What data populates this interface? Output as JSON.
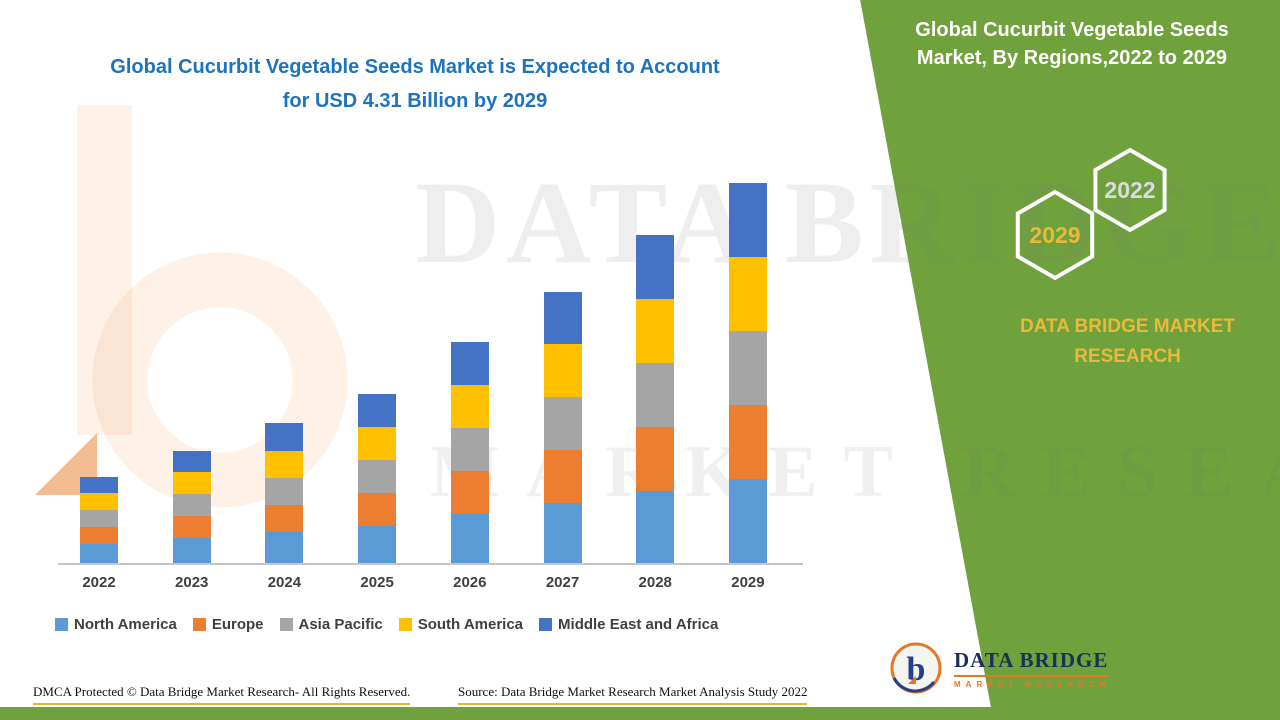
{
  "header": {
    "title_line1": "Global Cucurbit Vegetable Seeds Market is Expected to Account",
    "title_line2": "for USD 4.31 Billion by 2029"
  },
  "panel": {
    "title_line1": "Global Cucurbit Vegetable Seeds",
    "title_line2": "Market, By Regions,2022 to 2029",
    "hexagon_front": "2029",
    "hexagon_back": "2022",
    "brand": "DATA BRIDGE MARKET RESEARCH",
    "green": "#6FA13C",
    "accent_yellow": "#E9B93B"
  },
  "watermark": {
    "line1": "DATA BRIDGE",
    "line2": "MARKET RESEARCH"
  },
  "chart_data": {
    "type": "bar",
    "stacked": true,
    "title": "Global Cucurbit Vegetable Seeds Market, By Regions, 2022 to 2029",
    "unit": "USD Billion",
    "categories": [
      "2022",
      "2023",
      "2024",
      "2025",
      "2026",
      "2027",
      "2028",
      "2029"
    ],
    "series": [
      {
        "name": "North America",
        "color": "#5B9BD5",
        "values": [
          0.21,
          0.28,
          0.35,
          0.42,
          0.55,
          0.68,
          0.81,
          0.95
        ]
      },
      {
        "name": "Europe",
        "color": "#ED7D31",
        "values": [
          0.19,
          0.25,
          0.31,
          0.37,
          0.48,
          0.6,
          0.72,
          0.84
        ]
      },
      {
        "name": "Asia Pacific",
        "color": "#A5A5A5",
        "values": [
          0.19,
          0.25,
          0.31,
          0.37,
          0.48,
          0.6,
          0.72,
          0.84
        ]
      },
      {
        "name": "South America",
        "color": "#FFC000",
        "values": [
          0.19,
          0.25,
          0.31,
          0.37,
          0.48,
          0.6,
          0.72,
          0.84
        ]
      },
      {
        "name": "Middle East and Africa",
        "color": "#4472C4",
        "values": [
          0.18,
          0.24,
          0.32,
          0.37,
          0.49,
          0.59,
          0.72,
          0.84
        ]
      }
    ],
    "totals": [
      0.96,
      1.27,
      1.6,
      1.9,
      2.48,
      3.07,
      3.69,
      4.31
    ],
    "ylim": [
      0,
      4.31
    ],
    "grid": false,
    "y_axis_visible": false,
    "legend_position": "bottom"
  },
  "footer": {
    "dmca": "DMCA Protected © Data Bridge Market Research- All Rights Reserved.",
    "source": "Source: Data Bridge Market Research Market Analysis Study 2022"
  },
  "logo": {
    "name": "DATA BRIDGE",
    "subtitle": "MARKET RESEARCH"
  }
}
